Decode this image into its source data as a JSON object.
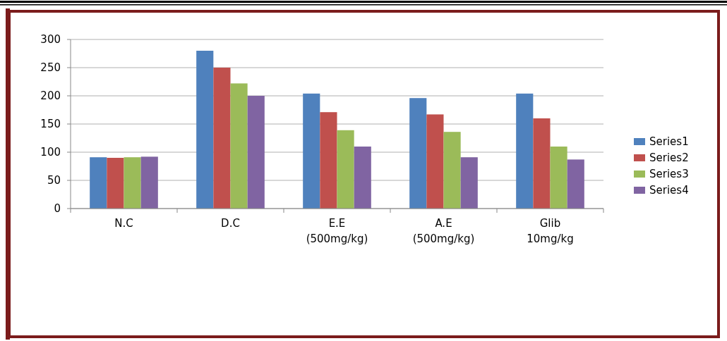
{
  "chart_data": {
    "type": "bar",
    "categories": [
      "N.C",
      "D.C",
      "E.E\n(500mg/kg)",
      "A.E\n(500mg/kg)",
      "Glib\n10mg/kg"
    ],
    "series": [
      {
        "name": "Series1",
        "color": "#4f81bd",
        "values": [
          91,
          280,
          204,
          196,
          204
        ]
      },
      {
        "name": "Series2",
        "color": "#c0504d",
        "values": [
          90,
          250,
          171,
          167,
          160
        ]
      },
      {
        "name": "Series3",
        "color": "#9bbb59",
        "values": [
          91,
          222,
          139,
          136,
          110
        ]
      },
      {
        "name": "Series4",
        "color": "#8064a2",
        "values": [
          92,
          200,
          110,
          91,
          87
        ]
      }
    ],
    "ylim": [
      0,
      300
    ],
    "yticks": [
      0,
      50,
      100,
      150,
      200,
      250,
      300
    ],
    "grid": "y",
    "legend": "right"
  }
}
